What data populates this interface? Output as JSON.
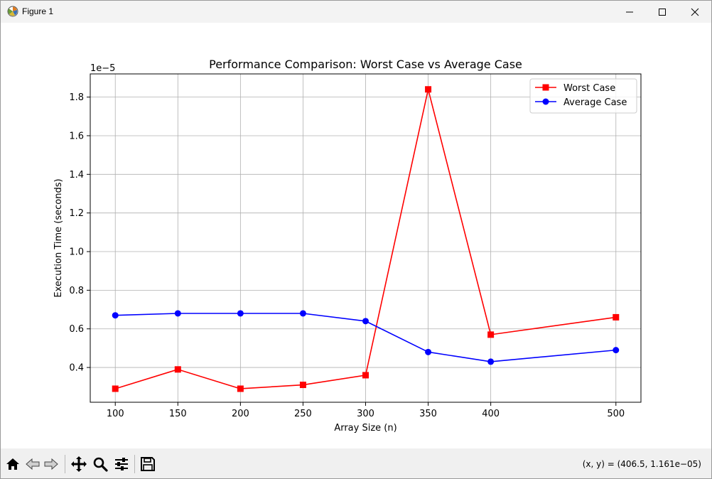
{
  "window": {
    "title": "Figure 1",
    "minimize_icon": "minimize-icon",
    "maximize_icon": "maximize-icon",
    "close_icon": "close-icon"
  },
  "toolbar": {
    "buttons": [
      {
        "name": "home",
        "icon": "home-icon"
      },
      {
        "name": "back",
        "icon": "back-arrow-icon"
      },
      {
        "name": "forward",
        "icon": "forward-arrow-icon"
      },
      {
        "name": "pan",
        "icon": "move-icon"
      },
      {
        "name": "zoom",
        "icon": "zoom-icon"
      },
      {
        "name": "configure-subplots",
        "icon": "sliders-icon"
      },
      {
        "name": "save",
        "icon": "save-icon"
      }
    ],
    "coordinates": "(x, y) = (406.5, 1.161e−05)"
  },
  "chart_data": {
    "type": "line",
    "title": "Performance Comparison: Worst Case vs Average Case",
    "xlabel": "Array Size (n)",
    "ylabel": "Execution Time (seconds)",
    "offset_text": "1e−5",
    "x": [
      100,
      150,
      200,
      250,
      300,
      350,
      400,
      500
    ],
    "x_ticks": [
      100,
      150,
      200,
      250,
      300,
      350,
      400,
      500
    ],
    "x_tick_labels": [
      "100",
      "150",
      "200",
      "250",
      "300",
      "350",
      "400",
      "500"
    ],
    "y_ticks": [
      0.4,
      0.6,
      0.8,
      1.0,
      1.2,
      1.4,
      1.6,
      1.8
    ],
    "y_tick_labels": [
      "0.4",
      "0.6",
      "0.8",
      "1.0",
      "1.2",
      "1.4",
      "1.6",
      "1.8"
    ],
    "xlim": [
      80,
      520
    ],
    "ylim": [
      0.22,
      1.92
    ],
    "grid": true,
    "legend_position": "upper right",
    "series": [
      {
        "name": "Worst Case",
        "color": "#ff0000",
        "marker": "square",
        "values": [
          0.29,
          0.39,
          0.29,
          0.31,
          0.36,
          1.84,
          0.57,
          0.66
        ]
      },
      {
        "name": "Average Case",
        "color": "#0000ff",
        "marker": "circle",
        "values": [
          0.67,
          0.68,
          0.68,
          0.68,
          0.64,
          0.48,
          0.43,
          0.49
        ]
      }
    ]
  }
}
